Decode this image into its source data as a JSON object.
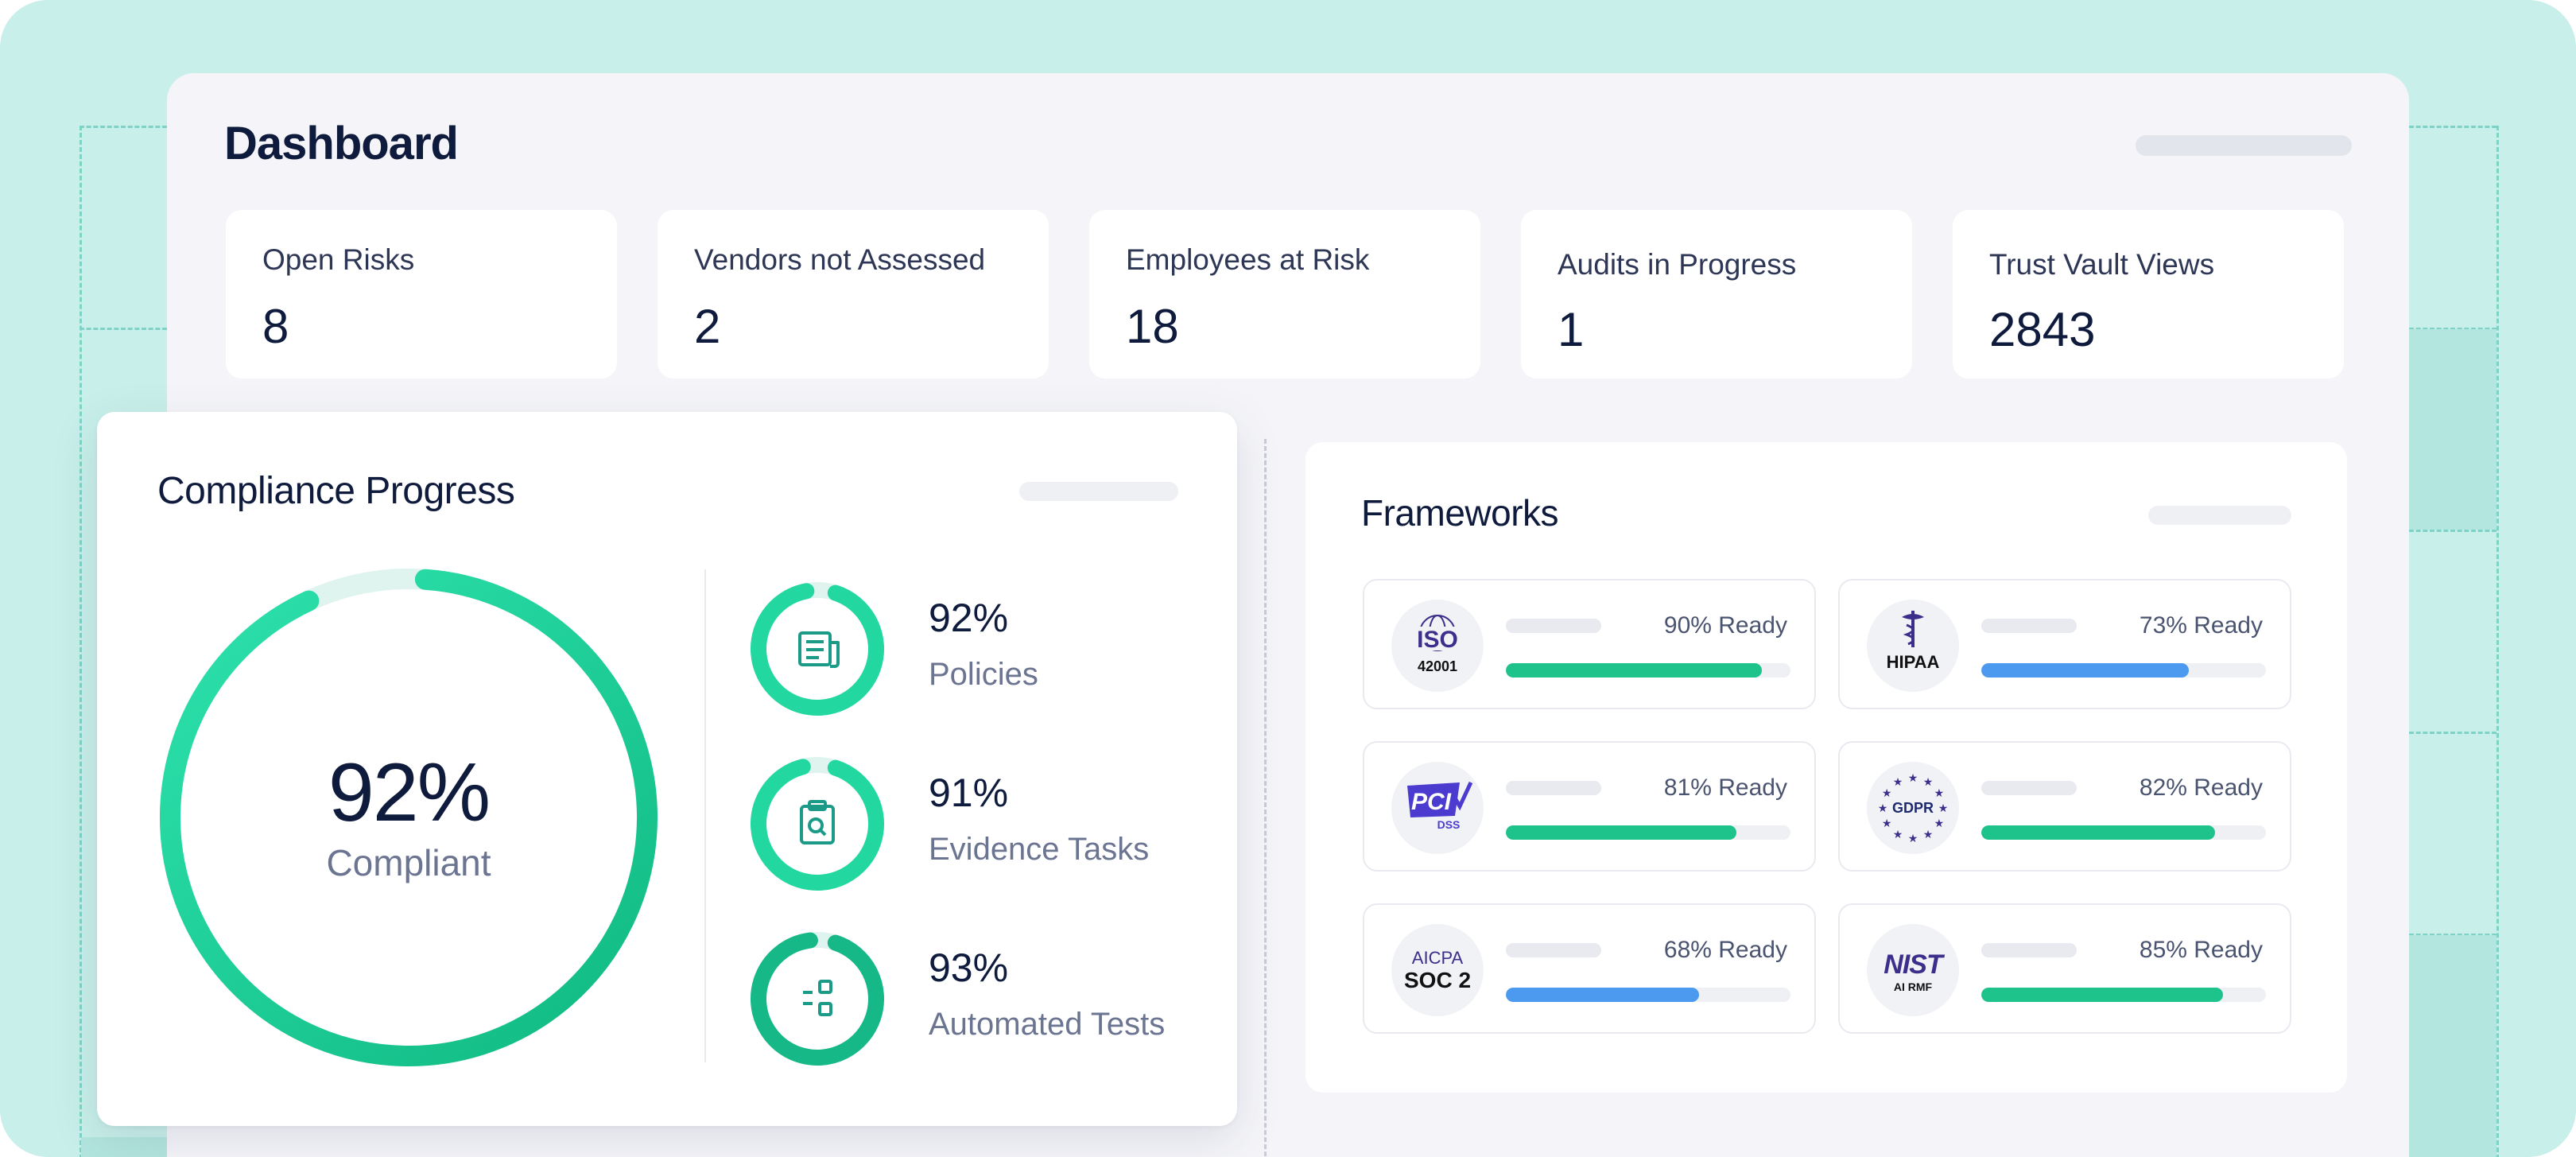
{
  "dashboard": {
    "title": "Dashboard"
  },
  "stats": [
    {
      "label": "Open Risks",
      "value": "8"
    },
    {
      "label": "Vendors not Assessed",
      "value": "2"
    },
    {
      "label": "Employees at Risk",
      "value": "18"
    },
    {
      "label": "Audits in Progress",
      "value": "1"
    },
    {
      "label": "Trust Vault Views",
      "value": "2843"
    }
  ],
  "compliance": {
    "title": "Compliance Progress",
    "overall_pct": "92%",
    "overall_label": "Compliant",
    "overall_value": 0.92,
    "metrics": [
      {
        "pct": "92%",
        "label": "Policies",
        "value": 0.92,
        "icon": "document-icon"
      },
      {
        "pct": "91%",
        "label": "Evidence Tasks",
        "value": 0.91,
        "icon": "clipboard-search-icon"
      },
      {
        "pct": "93%",
        "label": "Automated Tests",
        "value": 0.93,
        "icon": "tests-icon"
      }
    ]
  },
  "frameworks": {
    "title": "Frameworks",
    "items": [
      {
        "name": "ISO 42001",
        "logo_text": "ISO",
        "logo_sub": "42001",
        "ready": "90% Ready",
        "value": 0.9,
        "color": "#1ec28b"
      },
      {
        "name": "HIPAA",
        "logo_text": "HIPAA",
        "ready": "73% Ready",
        "value": 0.73,
        "color": "#4c9af0"
      },
      {
        "name": "PCI DSS",
        "logo_text": "PCI",
        "logo_sub": "DSS",
        "ready": "81% Ready",
        "value": 0.81,
        "color": "#1ec28b"
      },
      {
        "name": "GDPR",
        "logo_text": "GDPR",
        "ready": "82% Ready",
        "value": 0.82,
        "color": "#1ec28b"
      },
      {
        "name": "AICPA SOC 2",
        "logo_text": "AICPA",
        "logo_sub": "SOC 2",
        "ready": "68% Ready",
        "value": 0.68,
        "color": "#4c9af0"
      },
      {
        "name": "NIST AI RMF",
        "logo_text": "NIST",
        "logo_sub": "AI RMF",
        "ready": "85% Ready",
        "value": 0.85,
        "color": "#1ec28b"
      }
    ]
  },
  "colors": {
    "accent_green": "#1ec28b",
    "accent_blue": "#4c9af0",
    "background": "#c8efea"
  }
}
